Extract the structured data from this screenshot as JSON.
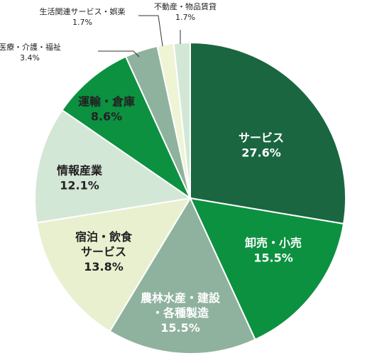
{
  "chart_data": {
    "type": "pie",
    "start": "12 o'clock, clockwise",
    "slices": [
      {
        "label": [
          "サービス"
        ],
        "value_label": "27.6%",
        "value": 27.6,
        "color": "#1a6640",
        "text_color": "#ffffff",
        "placement": "inside"
      },
      {
        "label": [
          "卸売・小売"
        ],
        "value_label": "15.5%",
        "value": 15.5,
        "color": "#0c9140",
        "text_color": "#ffffff",
        "placement": "inside"
      },
      {
        "label": [
          "農林水産・建設",
          "・各種製造"
        ],
        "value_label": "15.5%",
        "value": 15.5,
        "color": "#8fb29e",
        "text_color": "#ffffff",
        "placement": "inside"
      },
      {
        "label": [
          "宿泊・飲食",
          "サービス"
        ],
        "value_label": "13.8%",
        "value": 13.8,
        "color": "#e8f0d0",
        "text_color": "#222222",
        "placement": "inside"
      },
      {
        "label": [
          "情報産業"
        ],
        "value_label": "12.1%",
        "value": 12.1,
        "color": "#d3e7d6",
        "text_color": "#222222",
        "placement": "inside"
      },
      {
        "label": [
          "運輸・倉庫"
        ],
        "value_label": "8.6%",
        "value": 8.6,
        "color": "#0c9140",
        "text_color": "#222222",
        "placement": "inside"
      },
      {
        "label": [
          "医療・介護・福祉"
        ],
        "value_label": "3.4%",
        "value": 3.4,
        "color": "#8fb29e",
        "text_color": "#222222",
        "placement": "outside"
      },
      {
        "label": [
          "生活関連サービス・娯楽"
        ],
        "value_label": "1.7%",
        "value": 1.7,
        "color": "#eef4d4",
        "text_color": "#222222",
        "placement": "outside"
      },
      {
        "label": [
          "不動産・物品賃貸"
        ],
        "value_label": "1.7%",
        "value": 1.7,
        "color": "#d3e7d6",
        "text_color": "#222222",
        "placement": "outside"
      }
    ]
  }
}
